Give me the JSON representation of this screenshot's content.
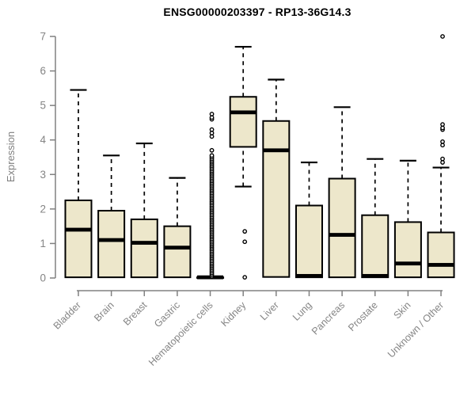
{
  "title": "ENSG00000203397 - RP13-36G14.3",
  "chart_data": {
    "type": "boxplot",
    "title": "ENSG00000203397 - RP13-36G14.3",
    "xlabel": "",
    "ylabel": "Expression",
    "ylim": [
      0,
      7
    ],
    "yticks": [
      0,
      1,
      2,
      3,
      4,
      5,
      6,
      7
    ],
    "grid": "off",
    "legend": "none",
    "categories": [
      "Bladder",
      "Brain",
      "Breast",
      "Gastric",
      "Hematopoietic cells",
      "Kidney",
      "Liver",
      "Lung",
      "Pancreas",
      "Prostate",
      "Skin",
      "Unknown / Other"
    ],
    "series": [
      {
        "name": "Bladder",
        "lo": 0.02,
        "q1": 0.02,
        "median": 1.4,
        "q3": 2.25,
        "hi": 5.45,
        "outliers": []
      },
      {
        "name": "Brain",
        "lo": 0.02,
        "q1": 0.02,
        "median": 1.1,
        "q3": 1.95,
        "hi": 3.55,
        "outliers": []
      },
      {
        "name": "Breast",
        "lo": 0.02,
        "q1": 0.02,
        "median": 1.02,
        "q3": 1.7,
        "hi": 3.9,
        "outliers": []
      },
      {
        "name": "Gastric",
        "lo": 0.02,
        "q1": 0.02,
        "median": 0.88,
        "q3": 1.5,
        "hi": 2.9,
        "outliers": []
      },
      {
        "name": "Hematopoietic cells",
        "lo": 0.02,
        "q1": 0.02,
        "median": 0.02,
        "q3": 0.02,
        "hi": 0.02,
        "outliers": [
          3.7,
          4.1,
          4.2,
          4.3,
          4.6,
          4.65,
          4.75
        ],
        "outlier_strip": {
          "from": 0.05,
          "to": 3.55,
          "count": 72
        }
      },
      {
        "name": "Kidney",
        "lo": 2.65,
        "q1": 3.8,
        "median": 4.8,
        "q3": 5.25,
        "hi": 6.7,
        "outliers": [
          1.35,
          1.05,
          0.02
        ]
      },
      {
        "name": "Liver",
        "lo": 0.03,
        "q1": 0.03,
        "median": 3.7,
        "q3": 4.55,
        "hi": 5.75,
        "outliers": []
      },
      {
        "name": "Lung",
        "lo": 0.02,
        "q1": 0.02,
        "median": 0.06,
        "q3": 2.1,
        "hi": 3.35,
        "outliers": []
      },
      {
        "name": "Pancreas",
        "lo": 0.02,
        "q1": 0.02,
        "median": 1.25,
        "q3": 2.88,
        "hi": 4.95,
        "outliers": []
      },
      {
        "name": "Prostate",
        "lo": 0.02,
        "q1": 0.02,
        "median": 0.06,
        "q3": 1.82,
        "hi": 3.45,
        "outliers": []
      },
      {
        "name": "Skin",
        "lo": 0.02,
        "q1": 0.02,
        "median": 0.42,
        "q3": 1.62,
        "hi": 3.4,
        "outliers": []
      },
      {
        "name": "Unknown / Other",
        "lo": 0.02,
        "q1": 0.02,
        "median": 0.38,
        "q3": 1.32,
        "hi": 3.2,
        "outliers": [
          3.35,
          3.45,
          3.85,
          3.95,
          4.3,
          4.35,
          4.45,
          7.0
        ]
      }
    ],
    "colors": {
      "background": "#FFFFFF",
      "box_fill": "#EDE7CB",
      "box_border": "#000000",
      "median": "#000000",
      "whisker": "#000000",
      "outlier": "#000000",
      "axis": "#808080",
      "tick_label": "#858585",
      "title": "#000000"
    }
  }
}
